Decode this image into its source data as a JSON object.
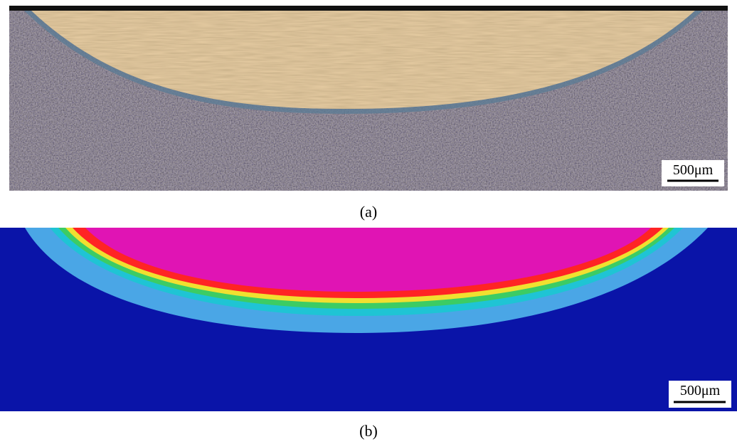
{
  "panels": [
    {
      "caption": "(a)",
      "scale_bar": "500μm"
    },
    {
      "caption": "(b)",
      "scale_bar": "500μm"
    }
  ]
}
